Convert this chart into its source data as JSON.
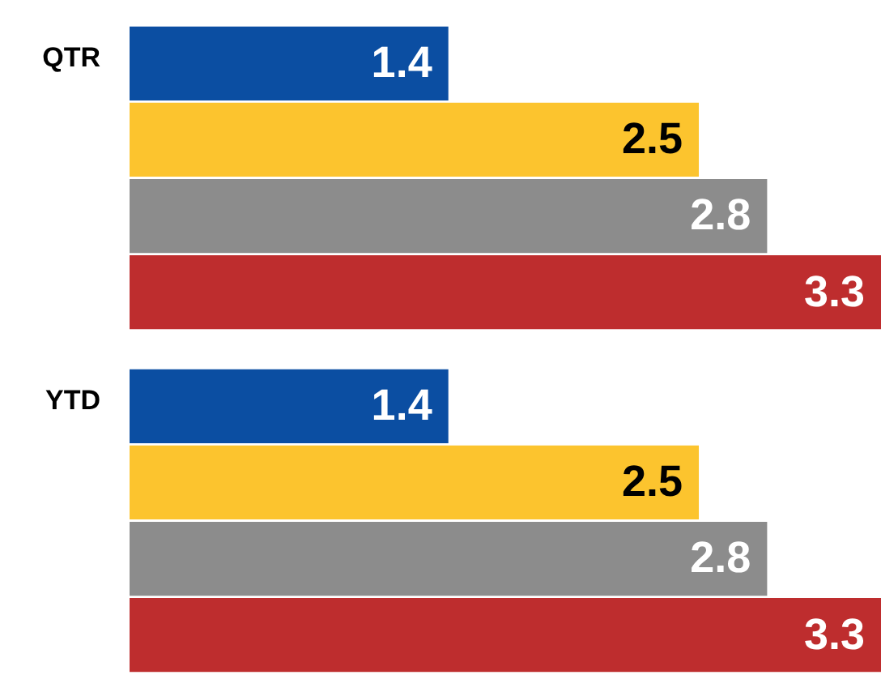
{
  "chart_data": {
    "type": "bar",
    "orientation": "horizontal",
    "categories": [
      "QTR",
      "YTD"
    ],
    "series": [
      {
        "color": "#0b4ea2",
        "values": [
          1.4,
          1.4
        ]
      },
      {
        "color": "#fcc42e",
        "values": [
          2.5,
          2.5
        ]
      },
      {
        "color": "#8c8c8c",
        "values": [
          2.8,
          2.8
        ]
      },
      {
        "color": "#be2d2e",
        "values": [
          3.3,
          3.3
        ]
      }
    ],
    "data_labels": true,
    "legend": false
  }
}
